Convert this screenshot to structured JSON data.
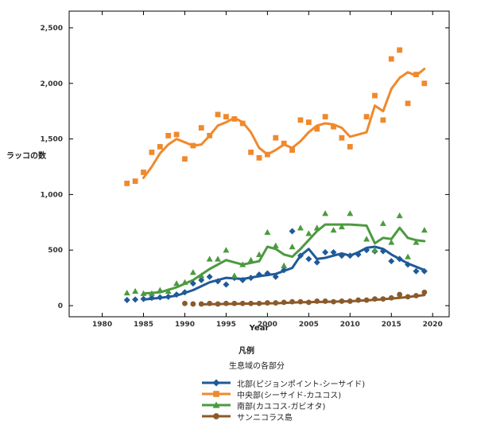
{
  "chart_data": {
    "type": "line",
    "title": "",
    "xlabel": "Year",
    "ylabel": "ラッコの数",
    "xlim": [
      1976,
      2022
    ],
    "ylim": [
      -100,
      2650
    ],
    "xticks": [
      1980,
      1985,
      1990,
      1995,
      2000,
      2005,
      2010,
      2015,
      2020
    ],
    "yticks": [
      0,
      500,
      1000,
      1500,
      2000,
      2500
    ],
    "ytick_labels": [
      "0",
      "500",
      "1,000",
      "1,500",
      "2,000",
      "2,500"
    ],
    "grid": false,
    "legend_title": "凡例",
    "legend_subtitle": "生息域の各部分",
    "series": [
      {
        "name": "北部(ピジョンポイント-シーサイド)",
        "color": "#1f5a99",
        "marker": "diamond",
        "points": [
          [
            1983,
            50
          ],
          [
            1984,
            55
          ],
          [
            1985,
            60
          ],
          [
            1986,
            70
          ],
          [
            1987,
            75
          ],
          [
            1988,
            80
          ],
          [
            1989,
            100
          ],
          [
            1990,
            120
          ],
          [
            1991,
            200
          ],
          [
            1992,
            230
          ],
          [
            1993,
            260
          ],
          [
            1994,
            220
          ],
          [
            1995,
            190
          ],
          [
            1996,
            250
          ],
          [
            1997,
            230
          ],
          [
            1998,
            250
          ],
          [
            1999,
            280
          ],
          [
            2000,
            290
          ],
          [
            2001,
            260
          ],
          [
            2002,
            320
          ],
          [
            2003,
            670
          ],
          [
            2004,
            450
          ],
          [
            2005,
            420
          ],
          [
            2006,
            390
          ],
          [
            2007,
            480
          ],
          [
            2008,
            480
          ],
          [
            2009,
            450
          ],
          [
            2010,
            450
          ],
          [
            2011,
            460
          ],
          [
            2012,
            500
          ],
          [
            2013,
            490
          ],
          [
            2014,
            490
          ],
          [
            2015,
            400
          ],
          [
            2016,
            420
          ],
          [
            2017,
            370
          ],
          [
            2018,
            310
          ],
          [
            2019,
            310
          ]
        ],
        "trend": [
          [
            1985,
            55
          ],
          [
            1987,
            70
          ],
          [
            1989,
            90
          ],
          [
            1991,
            140
          ],
          [
            1993,
            210
          ],
          [
            1995,
            250
          ],
          [
            1997,
            240
          ],
          [
            1999,
            265
          ],
          [
            2001,
            285
          ],
          [
            2003,
            340
          ],
          [
            2004,
            450
          ],
          [
            2005,
            510
          ],
          [
            2006,
            420
          ],
          [
            2007,
            430
          ],
          [
            2008,
            450
          ],
          [
            2009,
            470
          ],
          [
            2010,
            450
          ],
          [
            2011,
            480
          ],
          [
            2012,
            520
          ],
          [
            2013,
            530
          ],
          [
            2014,
            510
          ],
          [
            2015,
            460
          ],
          [
            2016,
            420
          ],
          [
            2017,
            380
          ],
          [
            2018,
            350
          ],
          [
            2019,
            320
          ]
        ]
      },
      {
        "name": "中央部(シーサイド-カユコス)",
        "color": "#f0892c",
        "marker": "square",
        "points": [
          [
            1983,
            1100
          ],
          [
            1984,
            1120
          ],
          [
            1985,
            1200
          ],
          [
            1986,
            1380
          ],
          [
            1987,
            1430
          ],
          [
            1988,
            1530
          ],
          [
            1989,
            1540
          ],
          [
            1990,
            1320
          ],
          [
            1991,
            1440
          ],
          [
            1992,
            1600
          ],
          [
            1993,
            1530
          ],
          [
            1994,
            1720
          ],
          [
            1995,
            1700
          ],
          [
            1996,
            1680
          ],
          [
            1997,
            1640
          ],
          [
            1998,
            1380
          ],
          [
            1999,
            1330
          ],
          [
            2000,
            1360
          ],
          [
            2001,
            1510
          ],
          [
            2002,
            1460
          ],
          [
            2003,
            1400
          ],
          [
            2004,
            1670
          ],
          [
            2005,
            1650
          ],
          [
            2006,
            1590
          ],
          [
            2007,
            1700
          ],
          [
            2008,
            1610
          ],
          [
            2009,
            1510
          ],
          [
            2010,
            1430
          ],
          [
            2012,
            1700
          ],
          [
            2013,
            1890
          ],
          [
            2014,
            1670
          ],
          [
            2015,
            2220
          ],
          [
            2016,
            2300
          ],
          [
            2017,
            1820
          ],
          [
            2018,
            2080
          ],
          [
            2019,
            2000
          ]
        ],
        "trend": [
          [
            1985,
            1150
          ],
          [
            1986,
            1250
          ],
          [
            1987,
            1370
          ],
          [
            1988,
            1450
          ],
          [
            1989,
            1500
          ],
          [
            1990,
            1470
          ],
          [
            1991,
            1440
          ],
          [
            1992,
            1450
          ],
          [
            1993,
            1530
          ],
          [
            1994,
            1620
          ],
          [
            1995,
            1650
          ],
          [
            1996,
            1690
          ],
          [
            1997,
            1650
          ],
          [
            1998,
            1560
          ],
          [
            1999,
            1420
          ],
          [
            2000,
            1360
          ],
          [
            2001,
            1400
          ],
          [
            2002,
            1450
          ],
          [
            2003,
            1420
          ],
          [
            2004,
            1480
          ],
          [
            2005,
            1560
          ],
          [
            2006,
            1620
          ],
          [
            2007,
            1640
          ],
          [
            2008,
            1630
          ],
          [
            2009,
            1600
          ],
          [
            2010,
            1520
          ],
          [
            2012,
            1560
          ],
          [
            2013,
            1800
          ],
          [
            2014,
            1750
          ],
          [
            2015,
            1950
          ],
          [
            2016,
            2050
          ],
          [
            2017,
            2100
          ],
          [
            2018,
            2070
          ],
          [
            2019,
            2130
          ]
        ]
      },
      {
        "name": "南部(カユコス-ガビオタ)",
        "color": "#4c9a40",
        "marker": "triangle",
        "points": [
          [
            1983,
            115
          ],
          [
            1984,
            130
          ],
          [
            1985,
            110
          ],
          [
            1986,
            110
          ],
          [
            1987,
            140
          ],
          [
            1988,
            130
          ],
          [
            1989,
            200
          ],
          [
            1990,
            210
          ],
          [
            1991,
            300
          ],
          [
            1992,
            270
          ],
          [
            1993,
            420
          ],
          [
            1994,
            420
          ],
          [
            1995,
            500
          ],
          [
            1996,
            270
          ],
          [
            1997,
            370
          ],
          [
            1998,
            410
          ],
          [
            1999,
            460
          ],
          [
            2000,
            660
          ],
          [
            2001,
            540
          ],
          [
            2002,
            360
          ],
          [
            2003,
            530
          ],
          [
            2004,
            700
          ],
          [
            2005,
            650
          ],
          [
            2006,
            700
          ],
          [
            2007,
            830
          ],
          [
            2008,
            680
          ],
          [
            2009,
            710
          ],
          [
            2010,
            830
          ],
          [
            2012,
            600
          ],
          [
            2013,
            500
          ],
          [
            2014,
            740
          ],
          [
            2015,
            570
          ],
          [
            2016,
            810
          ],
          [
            2017,
            440
          ],
          [
            2018,
            570
          ],
          [
            2019,
            680
          ]
        ],
        "trend": [
          [
            1985,
            110
          ],
          [
            1987,
            120
          ],
          [
            1989,
            165
          ],
          [
            1991,
            230
          ],
          [
            1993,
            330
          ],
          [
            1995,
            410
          ],
          [
            1997,
            370
          ],
          [
            1999,
            400
          ],
          [
            2000,
            530
          ],
          [
            2001,
            510
          ],
          [
            2002,
            460
          ],
          [
            2003,
            440
          ],
          [
            2004,
            510
          ],
          [
            2005,
            590
          ],
          [
            2006,
            670
          ],
          [
            2007,
            730
          ],
          [
            2008,
            730
          ],
          [
            2010,
            730
          ],
          [
            2012,
            720
          ],
          [
            2013,
            560
          ],
          [
            2014,
            610
          ],
          [
            2015,
            600
          ],
          [
            2016,
            700
          ],
          [
            2017,
            610
          ],
          [
            2018,
            590
          ],
          [
            2019,
            580
          ]
        ]
      },
      {
        "name": "サンニコラス島",
        "color": "#8b5a2b",
        "marker": "circle",
        "points": [
          [
            1990,
            20
          ],
          [
            1991,
            15
          ],
          [
            1992,
            15
          ],
          [
            1993,
            20
          ],
          [
            1994,
            15
          ],
          [
            1995,
            20
          ],
          [
            1996,
            20
          ],
          [
            1997,
            20
          ],
          [
            1998,
            20
          ],
          [
            1999,
            20
          ],
          [
            2000,
            25
          ],
          [
            2001,
            25
          ],
          [
            2002,
            30
          ],
          [
            2003,
            35
          ],
          [
            2004,
            35
          ],
          [
            2005,
            30
          ],
          [
            2006,
            40
          ],
          [
            2007,
            40
          ],
          [
            2008,
            35
          ],
          [
            2009,
            40
          ],
          [
            2010,
            40
          ],
          [
            2011,
            50
          ],
          [
            2012,
            50
          ],
          [
            2013,
            60
          ],
          [
            2014,
            60
          ],
          [
            2015,
            70
          ],
          [
            2016,
            100
          ],
          [
            2017,
            80
          ],
          [
            2018,
            90
          ],
          [
            2019,
            120
          ]
        ],
        "trend": [
          [
            1992,
            12
          ],
          [
            1995,
            15
          ],
          [
            1998,
            18
          ],
          [
            2001,
            22
          ],
          [
            2004,
            30
          ],
          [
            2007,
            34
          ],
          [
            2010,
            40
          ],
          [
            2013,
            52
          ],
          [
            2016,
            70
          ],
          [
            2019,
            95
          ]
        ]
      }
    ]
  }
}
